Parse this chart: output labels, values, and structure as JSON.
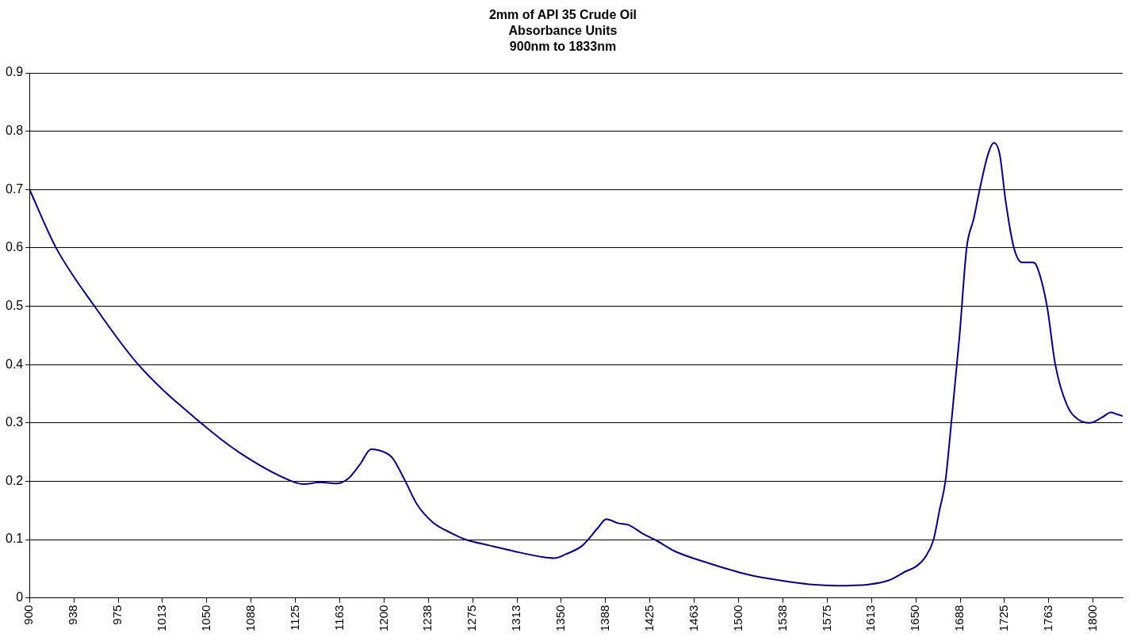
{
  "chart_data": {
    "type": "line",
    "title": "2mm of API 35 Crude Oil\nAbsorbance Units\n900nm to 1833nm",
    "series": [
      {
        "color": "#000080",
        "x": [
          900,
          922.5,
          955,
          992,
          1045,
          1077,
          1122,
          1132,
          1146,
          1159,
          1170,
          1180,
          1189,
          1200,
          1207,
          1218,
          1228,
          1241,
          1258,
          1269,
          1289,
          1310,
          1334,
          1344,
          1354,
          1368,
          1381,
          1388,
          1398,
          1407,
          1419,
          1429,
          1446,
          1474,
          1508,
          1535,
          1562,
          1583,
          1610,
          1627,
          1641,
          1651,
          1658,
          1665,
          1670,
          1675,
          1680,
          1687,
          1693,
          1699,
          1704,
          1711,
          1716,
          1721,
          1726,
          1733,
          1740,
          1749,
          1752,
          1761,
          1768,
          1778,
          1788,
          1797,
          1808,
          1815,
          1820,
          1825
        ],
        "values": [
          0.7,
          0.6,
          0.5,
          0.4,
          0.3,
          0.25,
          0.2,
          0.195,
          0.198,
          0.196,
          0.205,
          0.23,
          0.255,
          0.25,
          0.24,
          0.2,
          0.16,
          0.13,
          0.11,
          0.1,
          0.09,
          0.08,
          0.07,
          0.068,
          0.075,
          0.09,
          0.12,
          0.135,
          0.128,
          0.125,
          0.11,
          0.1,
          0.08,
          0.06,
          0.04,
          0.03,
          0.023,
          0.021,
          0.023,
          0.03,
          0.045,
          0.055,
          0.07,
          0.1,
          0.15,
          0.2,
          0.3,
          0.45,
          0.6,
          0.65,
          0.7,
          0.76,
          0.78,
          0.76,
          0.68,
          0.6,
          0.575,
          0.575,
          0.57,
          0.5,
          0.4,
          0.33,
          0.305,
          0.3,
          0.31,
          0.318,
          0.315,
          0.312
        ]
      }
    ],
    "xlim": [
      900,
      1825
    ],
    "xticks": [
      900,
      {
        "value": 937.5,
        "label": "938"
      },
      975,
      {
        "value": 1012.5,
        "label": "1013"
      },
      1050,
      {
        "value": 1087.5,
        "label": "1088"
      },
      1125,
      {
        "value": 1162.5,
        "label": "1163"
      },
      1200,
      {
        "value": 1237.5,
        "label": "1238"
      },
      1275,
      {
        "value": 1312.5,
        "label": "1313"
      },
      1350,
      {
        "value": 1387.5,
        "label": "1388"
      },
      1425,
      {
        "value": 1462.5,
        "label": "1463"
      },
      1500,
      {
        "value": 1537.5,
        "label": "1538"
      },
      1575,
      {
        "value": 1612.5,
        "label": "1613"
      },
      1650,
      {
        "value": 1687.5,
        "label": "1688"
      },
      1725,
      {
        "value": 1762.5,
        "label": "1763"
      },
      1800
    ],
    "ylim": [
      0,
      0.9
    ],
    "yticks": [
      0,
      0.1,
      0.2,
      0.3,
      0.4,
      0.5,
      0.6,
      0.7,
      0.8,
      0.9
    ],
    "grid": "y",
    "legend": false,
    "marker": "none",
    "line_style": "solid"
  }
}
